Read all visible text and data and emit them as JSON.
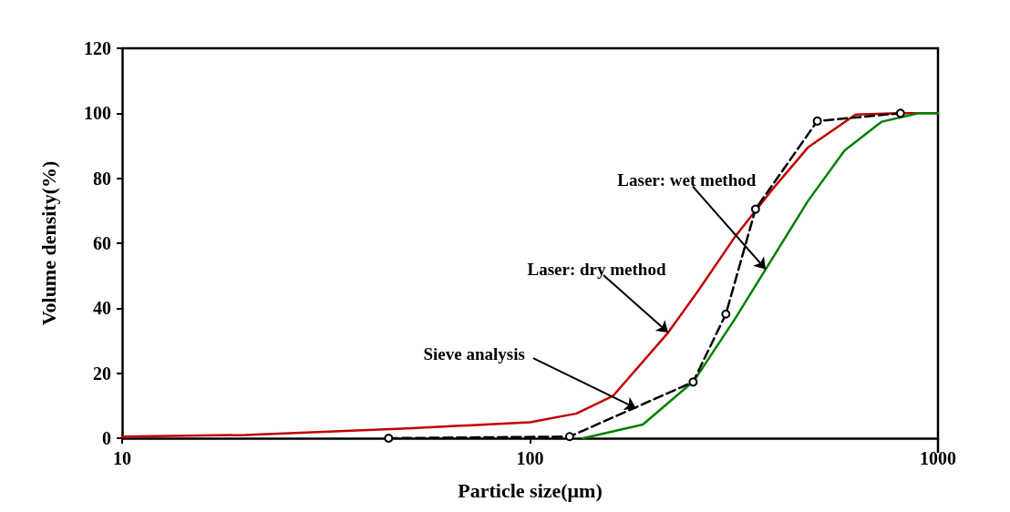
{
  "chart_data": {
    "type": "line",
    "xlabel": "Particle size(μm)",
    "ylabel": "Volume density(%)",
    "log": "x",
    "xlim": [
      10,
      1000
    ],
    "xticks": [
      10,
      100,
      1000
    ],
    "ylim": [
      0,
      120
    ],
    "yticks": [
      0,
      20,
      40,
      60,
      80,
      100,
      120
    ],
    "grid": false,
    "series": [
      {
        "color": "#c00000",
        "marker": "none",
        "line_style": "solid",
        "x": [
          10,
          20,
          50,
          100,
          130,
          160,
          218,
          258,
          318,
          391,
          481,
          628,
          800,
          1000
        ],
        "values": [
          0.5,
          1,
          3,
          4.9,
          7.6,
          13.1,
          32.5,
          45.3,
          62,
          76.3,
          89.6,
          99.6,
          100,
          100
        ]
      },
      {
        "color": "#008000",
        "marker": "none",
        "line_style": "solid",
        "x": [
          135,
          189,
          252,
          317,
          378,
          480,
          590,
          728,
          896,
          1000
        ],
        "values": [
          0,
          4.2,
          17.6,
          36.5,
          52,
          73,
          88.5,
          97.4,
          100,
          100
        ]
      },
      {
        "color": "#000000",
        "marker": "circle",
        "line_style": "dashed",
        "x": [
          45,
          125,
          251,
          302,
          357,
          506,
          809
        ],
        "values": [
          0,
          0.5,
          17.3,
          38.2,
          70.5,
          97.6,
          100
        ]
      }
    ],
    "annotations": [
      {
        "text": "Laser: dry method",
        "x": 218,
        "y": 32.5
      },
      {
        "text": "Laser: wet method",
        "x": 378,
        "y": 52
      },
      {
        "text": "Sieve analysis",
        "x": 182,
        "y": 9.2
      }
    ]
  }
}
